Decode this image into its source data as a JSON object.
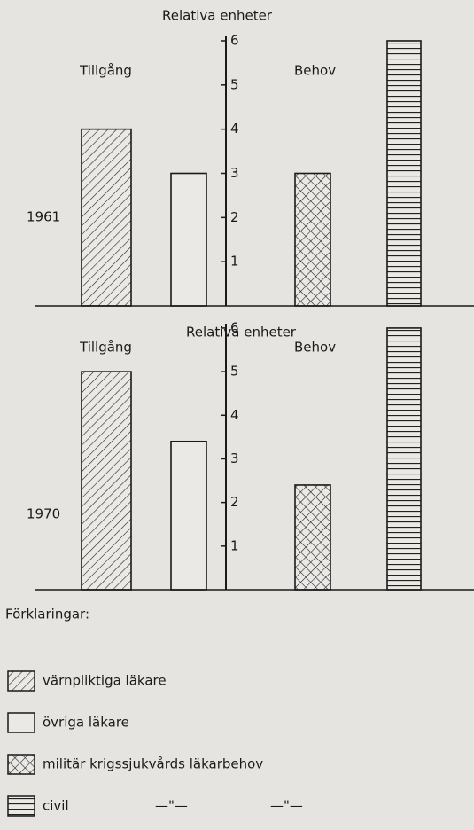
{
  "chart_data": [
    {
      "type": "bar",
      "title": "Relativa enheter",
      "period": "1961",
      "annotations": [
        "Tillgång",
        "Behov"
      ],
      "values": [
        4,
        3,
        3,
        6
      ],
      "ylim": [
        0,
        6.1
      ],
      "yticks": [
        1,
        2,
        3,
        4,
        5,
        6
      ]
    },
    {
      "type": "bar",
      "title": "Relativa enheter",
      "period": "1970",
      "annotations": [
        "Tillgång",
        "Behov"
      ],
      "values": [
        5,
        3.4,
        2.4,
        6
      ],
      "ylim": [
        0,
        6.1
      ],
      "yticks": [
        1,
        2,
        3,
        4,
        5,
        6
      ]
    }
  ],
  "legend": {
    "title": "Förklaringar:",
    "items": [
      {
        "name": "värnpliktiga läkare",
        "pattern": "diagonal"
      },
      {
        "name": "övriga läkare",
        "pattern": "none"
      },
      {
        "name": "militär krigssjukvårds läkarbehov",
        "pattern": "crosshatch"
      },
      {
        "name": "civil",
        "pattern": "horizontal"
      }
    ],
    "ditto": [
      "—\"—",
      "—\"—"
    ]
  }
}
